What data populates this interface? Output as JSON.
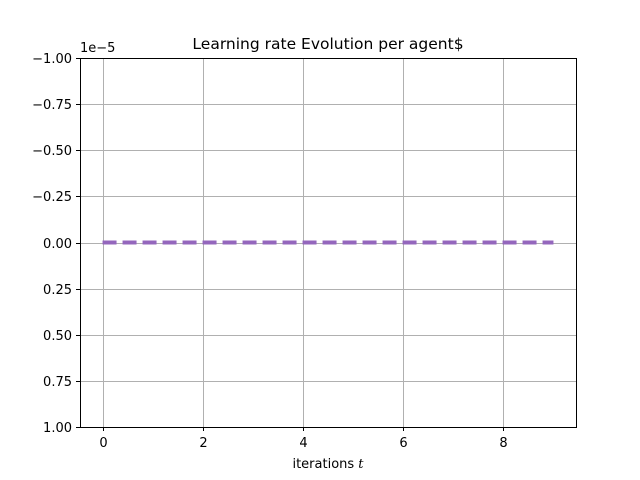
{
  "chart_data": {
    "type": "line",
    "title": "Learning rate Evolution per agent$",
    "xlabel_text": "iterations ",
    "xlabel_var": "t",
    "ylabel": "",
    "offset_text": "1e−5",
    "xlim": [
      -0.45,
      9.45
    ],
    "ylim": [
      1.0,
      -1.0
    ],
    "y_inverted": true,
    "grid": true,
    "x_ticks": [
      0,
      2,
      4,
      6,
      8
    ],
    "x_tick_labels": [
      "0",
      "2",
      "4",
      "6",
      "8"
    ],
    "y_ticks": [
      -1.0,
      -0.75,
      -0.5,
      -0.25,
      0.0,
      0.25,
      0.5,
      0.75,
      1.0
    ],
    "y_tick_labels": [
      "−1.00",
      "−0.75",
      "−0.50",
      "−0.25",
      "0.00",
      "0.25",
      "0.50",
      "0.75",
      "1.00"
    ],
    "series": [
      {
        "style": "dashed",
        "color": "#9467bd",
        "x": [
          0,
          1,
          2,
          3,
          4,
          5,
          6,
          7,
          8,
          9
        ],
        "y": [
          0,
          0,
          0,
          0,
          0,
          0,
          0,
          0,
          0,
          0
        ]
      }
    ]
  }
}
